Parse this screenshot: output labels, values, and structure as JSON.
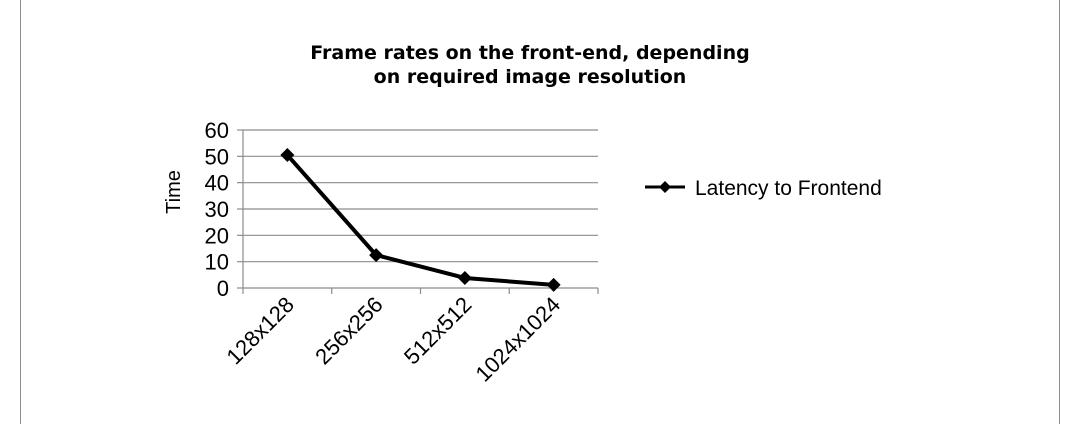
{
  "chart_data": {
    "type": "line",
    "title": [
      "Frame rates on the front-end, depending",
      "on required image resolution"
    ],
    "xlabel": "",
    "ylabel": "Time",
    "categories": [
      "128x128",
      "256x256",
      "512x512",
      "1024x1024"
    ],
    "ylim": [
      0,
      60
    ],
    "yticks": [
      "0",
      "10",
      "20",
      "30",
      "40",
      "50",
      "60"
    ],
    "grid": true,
    "legend_position": "right",
    "series": [
      {
        "name": "Latency to Frontend",
        "values": [
          50.5,
          12.5,
          3.8,
          1.2
        ],
        "color": "#000000",
        "marker": "diamond"
      }
    ]
  }
}
